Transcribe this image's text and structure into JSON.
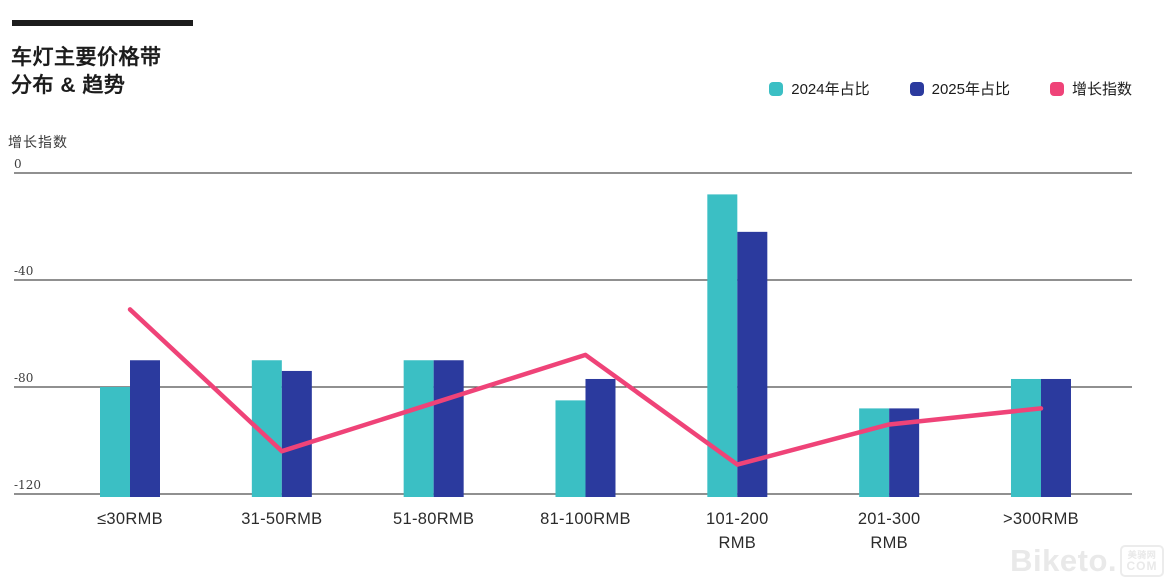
{
  "header": {
    "title_line1": "车灯主要价格带",
    "title_line2": "分布 & 趋势"
  },
  "legend": {
    "items": [
      {
        "label": "2024年占比",
        "color": "#3BBFC4"
      },
      {
        "label": "2025年占比",
        "color": "#2B3A9E"
      },
      {
        "label": "增长指数",
        "color": "#EF4378"
      }
    ]
  },
  "axis_label": "增长指数",
  "watermark": {
    "brand": "Biketo.",
    "badge_top": "美骑网",
    "badge_bottom": "COM"
  },
  "chart_data": {
    "type": "bar",
    "combo": "grouped bars + line overlay",
    "title": "车灯主要价格带 分布 & 趋势",
    "xlabel": "",
    "ylabel": "增长指数",
    "grid": true,
    "legend_position": "top-right",
    "ylim": [
      -120,
      0
    ],
    "y_ticks": [
      0,
      -40,
      -80,
      -120
    ],
    "bar_baseline": -120,
    "categories": [
      "≤30RMB",
      "31-50RMB",
      "51-80RMB",
      "81-100RMB",
      "101-200 RMB",
      "201-300 RMB",
      ">300RMB"
    ],
    "category_lines": [
      [
        "≤30RMB"
      ],
      [
        "31-50RMB"
      ],
      [
        "51-80RMB"
      ],
      [
        "81-100RMB"
      ],
      [
        "101-200",
        "RMB"
      ],
      [
        "201-300",
        "RMB"
      ],
      [
        ">300RMB"
      ]
    ],
    "series": [
      {
        "name": "2024年占比",
        "type": "bar",
        "color": "#3BBFC4",
        "values": [
          -80,
          -70,
          -70,
          -85,
          -8,
          -88,
          -77
        ]
      },
      {
        "name": "2025年占比",
        "type": "bar",
        "color": "#2B3A9E",
        "values": [
          -70,
          -74,
          -70,
          -77,
          -22,
          -88,
          -77
        ]
      },
      {
        "name": "增长指数",
        "type": "line",
        "color": "#EF4378",
        "values": [
          -51,
          -104,
          -86,
          -68,
          -109,
          -94,
          -88
        ]
      }
    ]
  }
}
